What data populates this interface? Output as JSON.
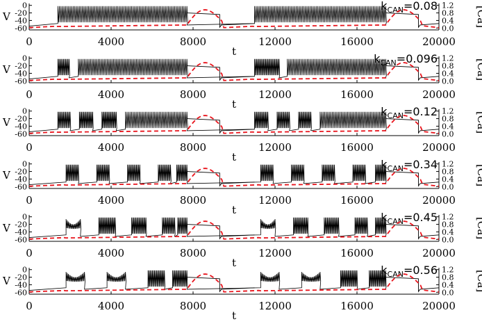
{
  "chart_data": {
    "type": "line",
    "x_tick_labels": [
      "0",
      "4000",
      "8000",
      "12000",
      "16000",
      "20000"
    ],
    "x_ticks": [
      0,
      4000,
      8000,
      12000,
      16000,
      20000
    ],
    "xlim": [
      0,
      20000
    ],
    "xlabel": "t",
    "ylabel_left": "V",
    "ylabel_right": "[Ca]",
    "left_ticks": [
      "0",
      "-20",
      "-40",
      "-60"
    ],
    "left_tick_values": [
      0,
      -20,
      -40,
      -60
    ],
    "left_ylim": [
      -65,
      5
    ],
    "right_ticks": [
      "1.2",
      "0.8",
      "0.4",
      "0.0"
    ],
    "right_tick_values": [
      1.2,
      0.8,
      0.4,
      0.0
    ],
    "right_ylim": [
      -0.1,
      1.3
    ],
    "series": [
      {
        "name": "V",
        "color": "#000000",
        "style": "solid"
      },
      {
        "name": "[Ca]",
        "color": "#e8141c",
        "style": "dashed"
      }
    ],
    "label_prefix": "k",
    "label_subscript": "CAN",
    "panels": [
      {
        "label_value": "=0.08",
        "active_windows": [
          [
            1400,
            7700
          ],
          [
            11000,
            17400
          ]
        ],
        "bursts": [
          {
            "start": 1400,
            "end": 7700,
            "mode": "tonic"
          },
          {
            "start": 11000,
            "end": 17400,
            "mode": "tonic"
          }
        ]
      },
      {
        "label_value": "=0.096",
        "active_windows": [
          [
            1400,
            7700
          ],
          [
            11000,
            17400
          ]
        ],
        "bursts": [
          {
            "start": 1400,
            "end": 1950
          },
          {
            "start": 2400,
            "end": 7700,
            "mode": "tonic"
          },
          {
            "start": 11000,
            "end": 12200
          },
          {
            "start": 12600,
            "end": 17400,
            "mode": "tonic"
          }
        ]
      },
      {
        "label_value": "=0.12",
        "active_windows": [
          [
            1400,
            7700
          ],
          [
            11000,
            17400
          ]
        ],
        "bursts": [
          {
            "start": 1400,
            "end": 2000
          },
          {
            "start": 2450,
            "end": 3100
          },
          {
            "start": 3550,
            "end": 4250
          },
          {
            "start": 4700,
            "end": 7700,
            "mode": "tonic"
          },
          {
            "start": 11000,
            "end": 11650
          },
          {
            "start": 12100,
            "end": 12700
          },
          {
            "start": 13150,
            "end": 13750
          },
          {
            "start": 14200,
            "end": 17400,
            "mode": "tonic"
          }
        ]
      },
      {
        "label_value": "=0.34",
        "active_windows": [
          [
            1800,
            7700
          ],
          [
            11300,
            17400
          ]
        ],
        "bursts": [
          {
            "start": 1800,
            "end": 2400
          },
          {
            "start": 3300,
            "end": 3900
          },
          {
            "start": 4800,
            "end": 5400
          },
          {
            "start": 6300,
            "end": 6900
          },
          {
            "start": 7200,
            "end": 7700
          },
          {
            "start": 11300,
            "end": 11900
          },
          {
            "start": 12800,
            "end": 13400
          },
          {
            "start": 14300,
            "end": 14900
          },
          {
            "start": 15800,
            "end": 16400
          },
          {
            "start": 16900,
            "end": 17400
          }
        ]
      },
      {
        "label_value": "=0.45",
        "active_windows": [
          [
            1800,
            7700
          ],
          [
            11300,
            17400
          ]
        ],
        "bursts": [
          {
            "start": 1800,
            "end": 2500,
            "mode": "spindle"
          },
          {
            "start": 3400,
            "end": 4200
          },
          {
            "start": 5000,
            "end": 5700
          },
          {
            "start": 6500,
            "end": 7100
          },
          {
            "start": 7250,
            "end": 7700
          },
          {
            "start": 11300,
            "end": 12000,
            "mode": "spindle"
          },
          {
            "start": 12900,
            "end": 13600
          },
          {
            "start": 14400,
            "end": 15100
          },
          {
            "start": 15900,
            "end": 16500
          },
          {
            "start": 16900,
            "end": 17400
          }
        ]
      },
      {
        "label_value": "=0.56",
        "active_windows": [
          [
            1800,
            7700
          ],
          [
            11300,
            17400
          ]
        ],
        "bursts": [
          {
            "start": 1800,
            "end": 2700,
            "mode": "spindle"
          },
          {
            "start": 3800,
            "end": 4700,
            "mode": "spindle"
          },
          {
            "start": 5800,
            "end": 6600
          },
          {
            "start": 7000,
            "end": 7700
          },
          {
            "start": 11300,
            "end": 12200,
            "mode": "spindle"
          },
          {
            "start": 13300,
            "end": 14200,
            "mode": "spindle"
          },
          {
            "start": 15200,
            "end": 16000
          },
          {
            "start": 16600,
            "end": 17400
          }
        ]
      }
    ]
  }
}
